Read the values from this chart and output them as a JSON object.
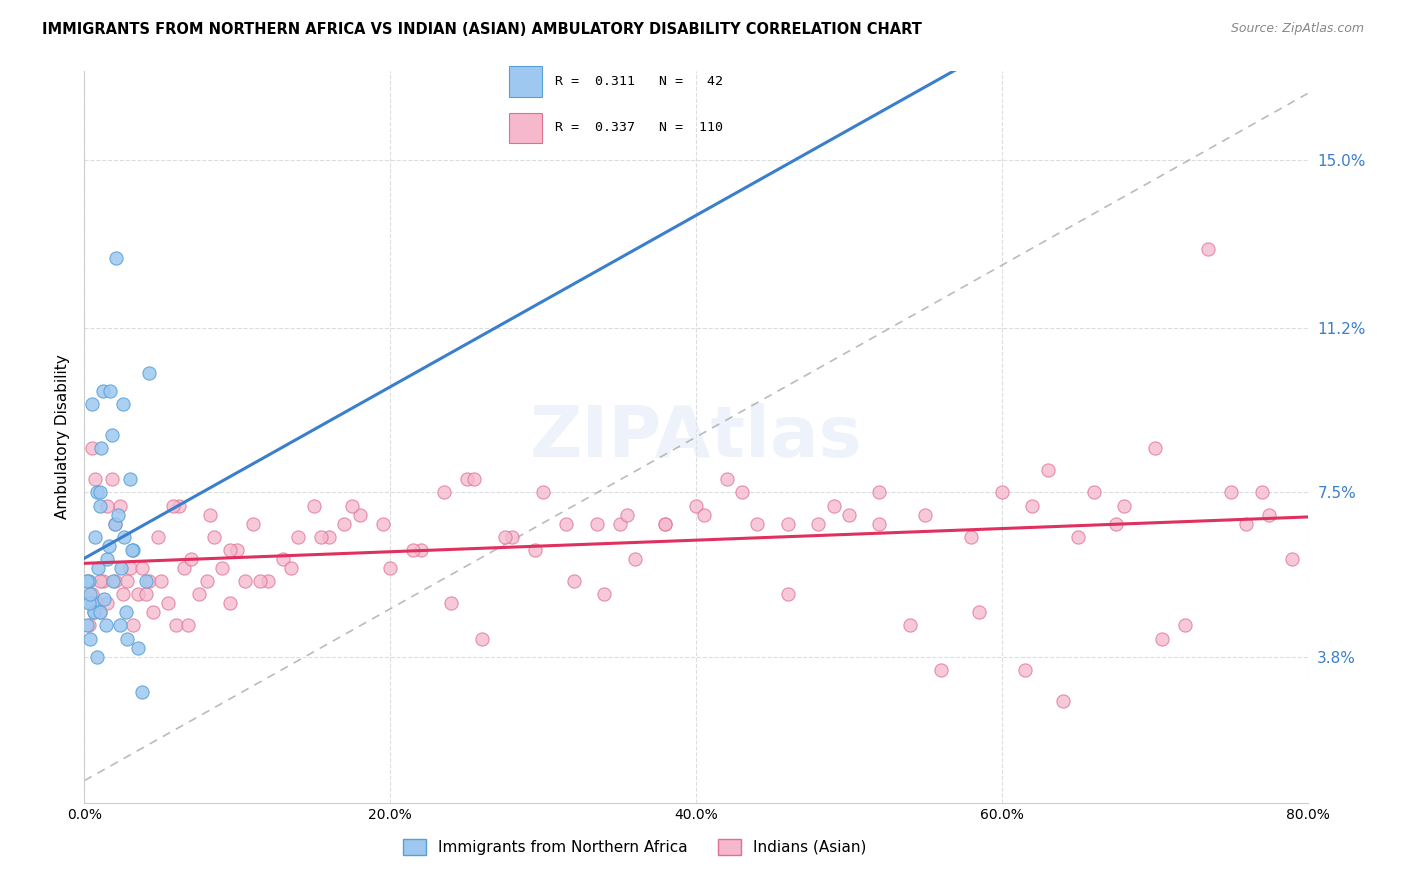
{
  "title": "IMMIGRANTS FROM NORTHERN AFRICA VS INDIAN (ASIAN) AMBULATORY DISABILITY CORRELATION CHART",
  "source": "Source: ZipAtlas.com",
  "ylabel": "Ambulatory Disability",
  "right_yticks": [
    3.8,
    7.5,
    11.2,
    15.0
  ],
  "right_ytick_labels": [
    "3.8%",
    "7.5%",
    "11.2%",
    "15.0%"
  ],
  "xlim": [
    0.0,
    80.0
  ],
  "ylim": [
    0.5,
    17.0
  ],
  "series1_label": "Immigrants from Northern Africa",
  "series1_color": "#9EC8F0",
  "series1_edge": "#5A9FD4",
  "series2_label": "Indians (Asian)",
  "series2_color": "#F5B8CC",
  "series2_edge": "#E07090",
  "line1_color": "#3A7FCC",
  "line2_color": "#E03060",
  "ref_line_color": "#AAAAAA",
  "background_color": "#FFFFFF",
  "grid_color": "#DDDDDD",
  "series1_x": [
    0.3,
    0.5,
    0.6,
    0.7,
    0.8,
    0.9,
    1.0,
    1.1,
    1.2,
    1.3,
    1.5,
    1.6,
    1.8,
    2.0,
    2.1,
    2.2,
    2.3,
    2.5,
    2.7,
    2.8,
    3.0,
    3.2,
    3.5,
    3.8,
    4.0,
    4.2,
    0.2,
    0.4,
    0.6,
    0.8,
    1.0,
    1.4,
    1.9,
    2.4,
    3.1,
    0.2,
    0.5,
    1.7,
    2.6,
    0.3,
    0.4,
    1.0
  ],
  "series1_y": [
    5.5,
    5.0,
    4.8,
    6.5,
    7.5,
    5.8,
    7.2,
    8.5,
    9.8,
    5.1,
    6.0,
    6.3,
    8.8,
    6.8,
    12.8,
    7.0,
    4.5,
    9.5,
    4.8,
    4.2,
    7.8,
    6.2,
    4.0,
    3.0,
    5.5,
    10.2,
    5.5,
    4.2,
    4.8,
    3.8,
    7.5,
    4.5,
    5.5,
    5.8,
    6.2,
    4.5,
    9.5,
    9.8,
    6.5,
    5.0,
    5.2,
    4.8
  ],
  "series2_x": [
    0.2,
    0.5,
    0.5,
    0.8,
    1.0,
    1.2,
    1.5,
    1.8,
    2.0,
    2.3,
    2.5,
    3.0,
    3.2,
    3.5,
    4.0,
    4.2,
    4.5,
    5.0,
    5.5,
    6.0,
    6.2,
    6.5,
    7.0,
    7.5,
    8.0,
    8.5,
    9.0,
    9.5,
    10.0,
    10.5,
    11.0,
    12.0,
    13.0,
    14.0,
    15.0,
    16.0,
    17.0,
    18.0,
    20.0,
    22.0,
    24.0,
    25.0,
    26.0,
    28.0,
    30.0,
    32.0,
    34.0,
    35.0,
    36.0,
    38.0,
    40.0,
    42.0,
    44.0,
    46.0,
    48.0,
    50.0,
    52.0,
    54.0,
    56.0,
    58.0,
    60.0,
    62.0,
    63.0,
    65.0,
    66.0,
    68.0,
    70.0,
    72.0,
    0.3,
    0.7,
    1.0,
    1.5,
    2.0,
    2.8,
    3.8,
    4.8,
    5.8,
    6.8,
    8.2,
    9.5,
    11.5,
    13.5,
    15.5,
    17.5,
    19.5,
    21.5,
    23.5,
    25.5,
    27.5,
    29.5,
    31.5,
    33.5,
    35.5,
    38.0,
    40.5,
    43.0,
    46.0,
    49.0,
    52.0,
    55.0,
    58.5,
    61.5,
    64.0,
    67.5,
    70.5,
    73.5,
    76.0,
    77.5,
    79.0,
    77.0,
    75.0
  ],
  "series2_y": [
    5.5,
    5.2,
    8.5,
    5.0,
    4.8,
    5.5,
    5.0,
    7.8,
    5.5,
    7.2,
    5.2,
    5.8,
    4.5,
    5.2,
    5.2,
    5.5,
    4.8,
    5.5,
    5.0,
    4.5,
    7.2,
    5.8,
    6.0,
    5.2,
    5.5,
    6.5,
    5.8,
    5.0,
    6.2,
    5.5,
    6.8,
    5.5,
    6.0,
    6.5,
    7.2,
    6.5,
    6.8,
    7.0,
    5.8,
    6.2,
    5.0,
    7.8,
    4.2,
    6.5,
    7.5,
    5.5,
    5.2,
    6.8,
    6.0,
    6.8,
    7.2,
    7.8,
    6.8,
    5.2,
    6.8,
    7.0,
    7.5,
    4.5,
    3.5,
    6.5,
    7.5,
    7.2,
    8.0,
    6.5,
    7.5,
    7.2,
    8.5,
    4.5,
    4.5,
    7.8,
    5.5,
    7.2,
    6.8,
    5.5,
    5.8,
    6.5,
    7.2,
    4.5,
    7.0,
    6.2,
    5.5,
    5.8,
    6.5,
    7.2,
    6.8,
    6.2,
    7.5,
    7.8,
    6.5,
    6.2,
    6.8,
    6.8,
    7.0,
    6.8,
    7.0,
    7.5,
    6.8,
    7.2,
    6.8,
    7.0,
    4.8,
    3.5,
    2.8,
    6.8,
    4.2,
    13.0,
    6.8,
    7.0,
    6.0,
    7.5,
    7.5
  ]
}
